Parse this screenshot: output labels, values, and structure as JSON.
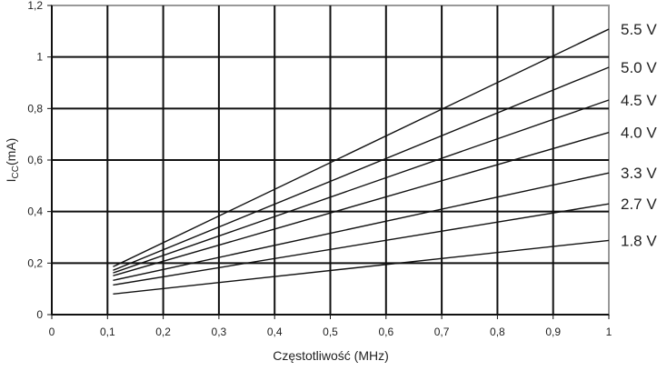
{
  "chart_data": {
    "type": "line",
    "title": "",
    "xlabel": "Częstotliwość (MHz)",
    "ylabel_main": "I",
    "ylabel_sub": "CC",
    "ylabel_unit": "(mA)",
    "xlim": [
      0,
      1
    ],
    "ylim": [
      0,
      1.2
    ],
    "grid": true,
    "xticks": [
      "0",
      "0,1",
      "0,2",
      "0,3",
      "0,4",
      "0,5",
      "0,6",
      "0,7",
      "0,8",
      "0,9",
      "1"
    ],
    "yticks": [
      "0",
      "0,2",
      "0,4",
      "0,6",
      "0,8",
      "1",
      "1,2"
    ],
    "legend_placement": "right (line-end labels)",
    "series": [
      {
        "name": "5.5 V",
        "x": [
          0.11,
          1.0
        ],
        "y": [
          0.186,
          1.108
        ]
      },
      {
        "name": "5.0 V",
        "x": [
          0.11,
          1.0
        ],
        "y": [
          0.172,
          0.96
        ]
      },
      {
        "name": "4.5 V",
        "x": [
          0.11,
          1.0
        ],
        "y": [
          0.162,
          0.833
        ]
      },
      {
        "name": "4.0 V",
        "x": [
          0.11,
          1.0
        ],
        "y": [
          0.151,
          0.707
        ]
      },
      {
        "name": "3.3 V",
        "x": [
          0.11,
          1.0
        ],
        "y": [
          0.133,
          0.55
        ]
      },
      {
        "name": "2.7 V",
        "x": [
          0.11,
          1.0
        ],
        "y": [
          0.115,
          0.43
        ]
      },
      {
        "name": "1.8 V",
        "x": [
          0.11,
          1.0
        ],
        "y": [
          0.08,
          0.288
        ]
      }
    ]
  }
}
